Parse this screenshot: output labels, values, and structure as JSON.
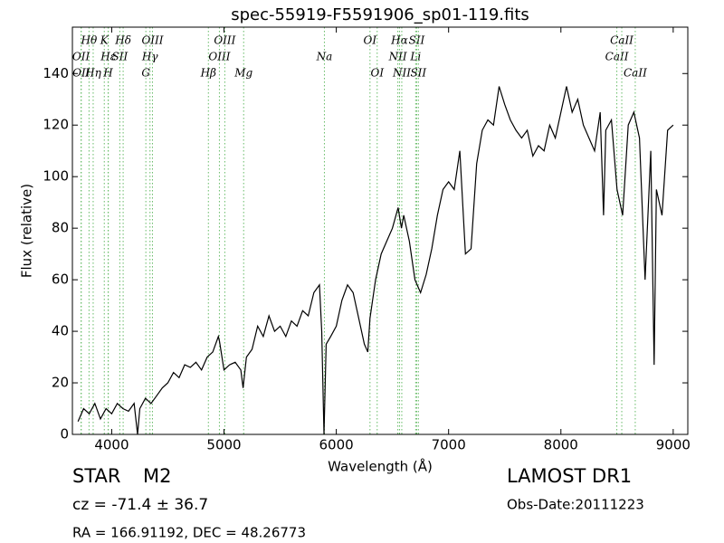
{
  "chart_data": {
    "type": "line",
    "title": "spec-55919-F5591906_sp01-119.fits",
    "xlabel": "Wavelength (Å)",
    "ylabel": "Flux (relative)",
    "x": [
      3700,
      3750,
      3800,
      3850,
      3900,
      3950,
      4000,
      4050,
      4100,
      4150,
      4200,
      4230,
      4250,
      4300,
      4350,
      4400,
      4450,
      4500,
      4550,
      4600,
      4650,
      4700,
      4750,
      4800,
      4850,
      4900,
      4950,
      4960,
      5000,
      5050,
      5100,
      5150,
      5170,
      5200,
      5250,
      5300,
      5350,
      5400,
      5450,
      5500,
      5550,
      5600,
      5650,
      5700,
      5750,
      5800,
      5850,
      5870,
      5890,
      5910,
      5950,
      6000,
      6050,
      6100,
      6150,
      6200,
      6250,
      6280,
      6300,
      6350,
      6400,
      6450,
      6500,
      6550,
      6580,
      6600,
      6650,
      6700,
      6750,
      6800,
      6850,
      6900,
      6950,
      7000,
      7050,
      7100,
      7150,
      7200,
      7250,
      7300,
      7350,
      7400,
      7450,
      7500,
      7550,
      7600,
      7650,
      7700,
      7750,
      7800,
      7850,
      7900,
      7950,
      8000,
      8050,
      8100,
      8150,
      8200,
      8250,
      8300,
      8350,
      8380,
      8400,
      8450,
      8500,
      8550,
      8600,
      8650,
      8700,
      8750,
      8800,
      8830,
      8850,
      8900,
      8950,
      9000
    ],
    "values": [
      5,
      10,
      8,
      12,
      6,
      10,
      8,
      12,
      10,
      9,
      12,
      0,
      10,
      14,
      12,
      15,
      18,
      20,
      24,
      22,
      27,
      26,
      28,
      25,
      30,
      32,
      38,
      36,
      25,
      27,
      28,
      25,
      18,
      30,
      33,
      42,
      38,
      46,
      40,
      42,
      38,
      44,
      42,
      48,
      46,
      55,
      58,
      40,
      0,
      35,
      38,
      42,
      52,
      58,
      55,
      45,
      35,
      32,
      45,
      60,
      70,
      75,
      80,
      88,
      80,
      85,
      75,
      60,
      55,
      62,
      72,
      85,
      95,
      98,
      95,
      110,
      70,
      72,
      105,
      118,
      122,
      120,
      135,
      128,
      122,
      118,
      115,
      118,
      108,
      112,
      110,
      120,
      115,
      125,
      135,
      125,
      130,
      120,
      115,
      110,
      125,
      85,
      118,
      122,
      95,
      85,
      120,
      125,
      115,
      60,
      110,
      27,
      95,
      85,
      118,
      120
    ],
    "color": "#000000",
    "xlim": [
      3650,
      9130
    ],
    "ylim": [
      0,
      158
    ],
    "xticks": [
      4000,
      5000,
      6000,
      7000,
      8000,
      9000
    ],
    "yticks": [
      0,
      20,
      40,
      60,
      80,
      100,
      120,
      140
    ],
    "line_color": "#66bb66",
    "lines": [
      {
        "label": "OII",
        "wavelength": 3727
      },
      {
        "label": "OII",
        "wavelength": 3729
      },
      {
        "label": "Hθ",
        "wavelength": 3798
      },
      {
        "label": "Hη",
        "wavelength": 3835
      },
      {
        "label": "K",
        "wavelength": 3934
      },
      {
        "label": "H",
        "wavelength": 3968
      },
      {
        "label": "Hε",
        "wavelength": 3970
      },
      {
        "label": "SII",
        "wavelength": 4072
      },
      {
        "label": "Hδ",
        "wavelength": 4102
      },
      {
        "label": "G",
        "wavelength": 4304
      },
      {
        "label": "Hγ",
        "wavelength": 4341
      },
      {
        "label": "OIII",
        "wavelength": 4363
      },
      {
        "label": "Hβ",
        "wavelength": 4861
      },
      {
        "label": "OIII",
        "wavelength": 4959
      },
      {
        "label": "OIII",
        "wavelength": 5007
      },
      {
        "label": "Mg",
        "wavelength": 5175
      },
      {
        "label": "Na",
        "wavelength": 5894
      },
      {
        "label": "OI",
        "wavelength": 6300
      },
      {
        "label": "OI",
        "wavelength": 6364
      },
      {
        "label": "NII",
        "wavelength": 6548
      },
      {
        "label": "Hα",
        "wavelength": 6563
      },
      {
        "label": "NII",
        "wavelength": 6583
      },
      {
        "label": "Li",
        "wavelength": 6707
      },
      {
        "label": "SII",
        "wavelength": 6716
      },
      {
        "label": "SII",
        "wavelength": 6731
      },
      {
        "label": "CaII",
        "wavelength": 8498
      },
      {
        "label": "CaII",
        "wavelength": 8542
      },
      {
        "label": "CaII",
        "wavelength": 8662
      }
    ]
  },
  "footer": {
    "object_class": "STAR",
    "subclass": "M2",
    "cz": "cz = -71.4 ± 36.7",
    "coords": "RA = 166.91192, DEC = 48.26773",
    "survey": "LAMOST DR1",
    "obs_date": "Obs-Date:20111223"
  }
}
